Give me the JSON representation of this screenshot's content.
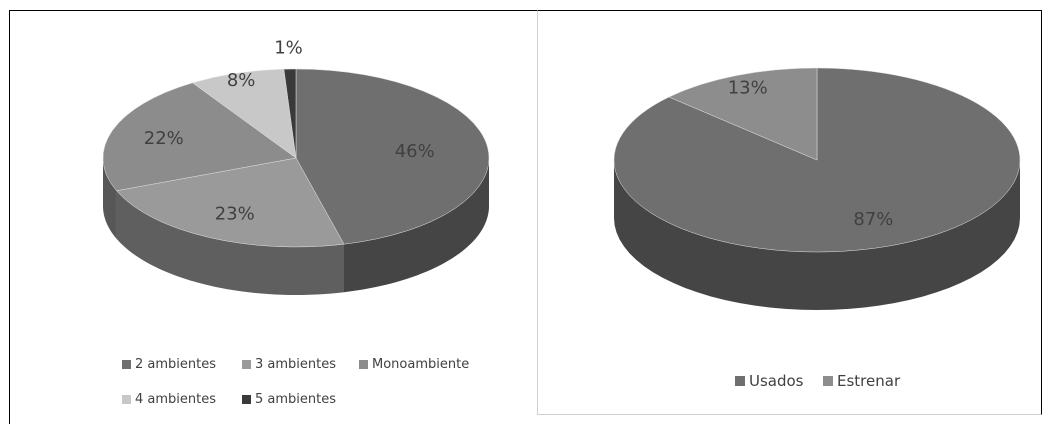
{
  "chart_data": [
    {
      "type": "pie",
      "style": "3d",
      "labels": [
        "2 ambientes",
        "3 ambientes",
        "Monoambiente",
        "4 ambientes",
        "5 ambientes"
      ],
      "values": [
        46,
        23,
        22,
        8,
        1
      ],
      "data_labels": [
        "46%",
        "23%",
        "22%",
        "8%",
        "1%"
      ],
      "colors": [
        "#6f6f6f",
        "#9a9a9a",
        "#8c8c8c",
        "#c8c8c8",
        "#3a3a3a"
      ],
      "legend": "bottom"
    },
    {
      "type": "pie",
      "style": "3d",
      "labels": [
        "Usados",
        "Estrenar"
      ],
      "values": [
        87,
        13
      ],
      "data_labels": [
        "87%",
        "13%"
      ],
      "colors": [
        "#6f6f6f",
        "#8d8d8d"
      ],
      "legend": "bottom"
    }
  ]
}
